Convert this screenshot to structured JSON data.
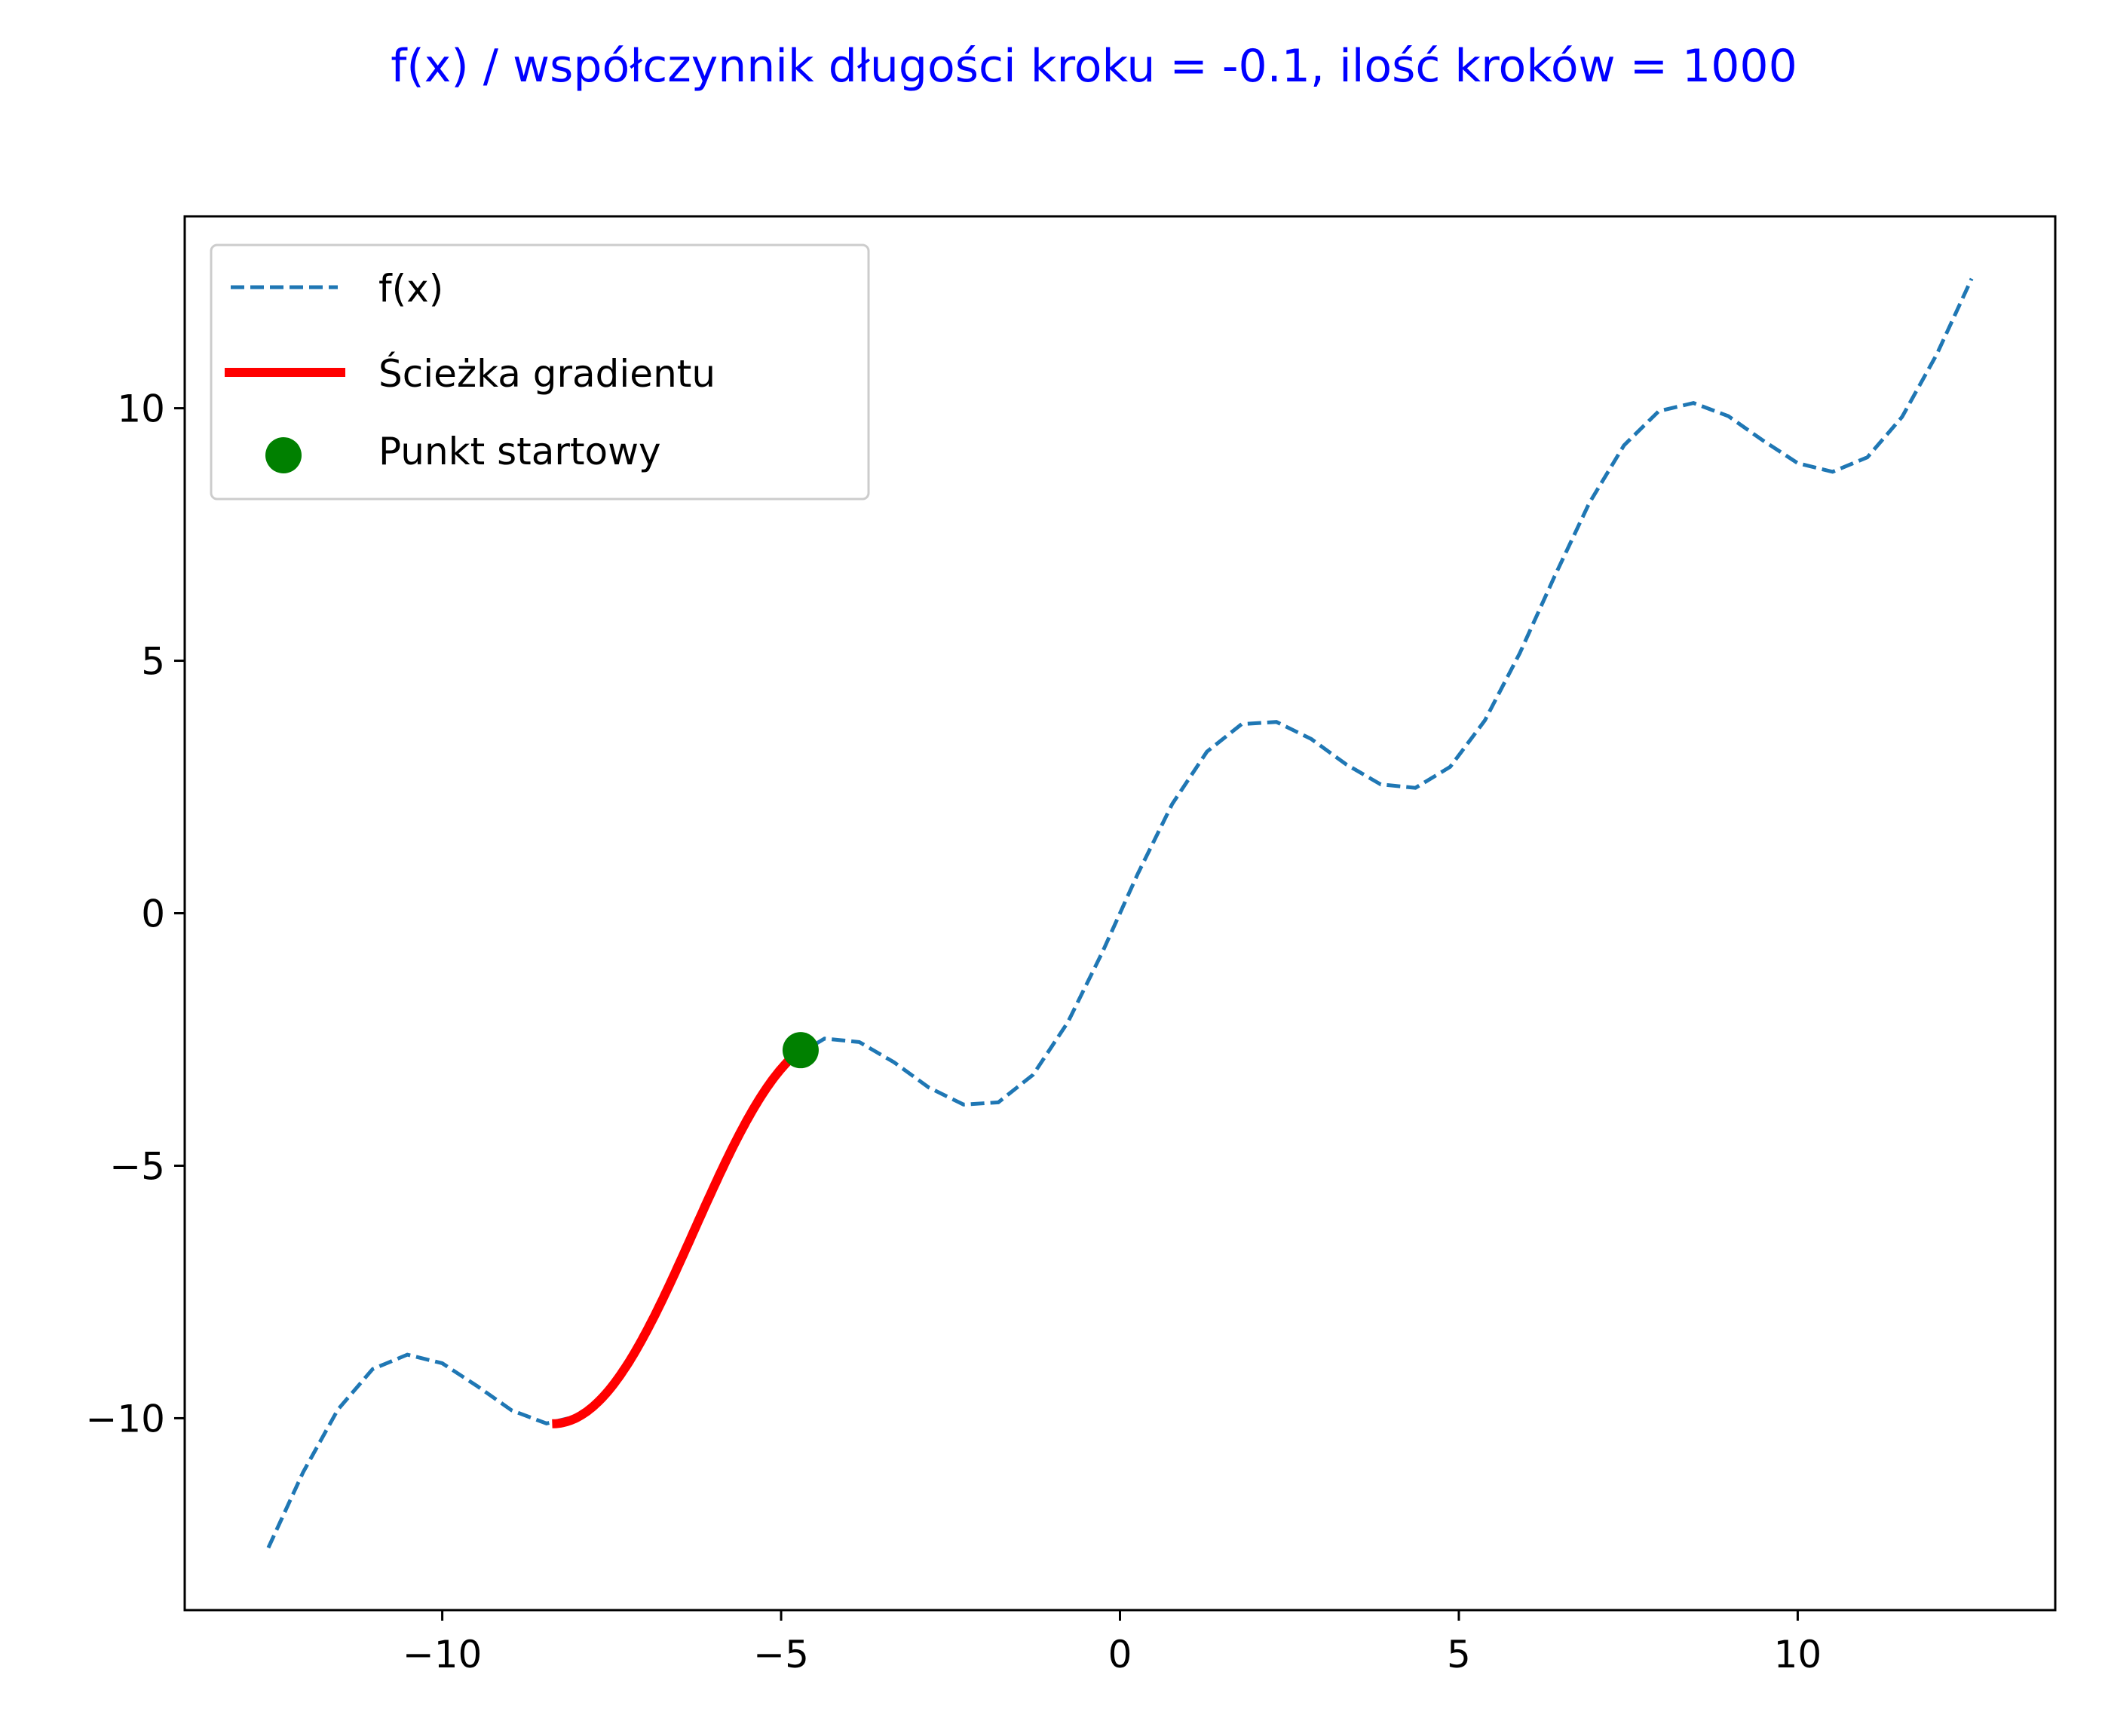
{
  "chart_data": {
    "type": "line",
    "title": "f(x) / współczynnik długości kroku = -0.1, ilość kroków = 1000",
    "title_color": "#0000ff",
    "xlabel": "",
    "ylabel": "",
    "xlim": [
      -13.8,
      13.8
    ],
    "ylim": [
      -13.8,
      13.8
    ],
    "xticks": [
      -10,
      -5,
      0,
      5,
      10
    ],
    "yticks": [
      -10,
      -5,
      0,
      5,
      10
    ],
    "xtick_labels": [
      "−10",
      "−5",
      "0",
      "5",
      "10"
    ],
    "ytick_labels": [
      "−10",
      "−5",
      "0",
      "5",
      "10"
    ],
    "grid": false,
    "legend_position": "upper-left",
    "series": [
      {
        "name": "f(x)",
        "kind": "line",
        "style": "dashed",
        "color": "#1f77b4",
        "function": "x + 2*sin(x)",
        "x_range": [
          -12.566,
          12.566
        ],
        "samples": 50
      },
      {
        "name": "Ścieżka gradientu",
        "kind": "line",
        "style": "solid",
        "color": "#ff0000",
        "function": "x + 2*sin(x)",
        "x_range": [
          -8.378,
          -4.712
        ],
        "samples": 120
      },
      {
        "name": "Punkt startowy",
        "kind": "scatter",
        "color": "#008000",
        "points": [
          {
            "x": -4.712,
            "y": -2.712
          }
        ]
      }
    ]
  }
}
